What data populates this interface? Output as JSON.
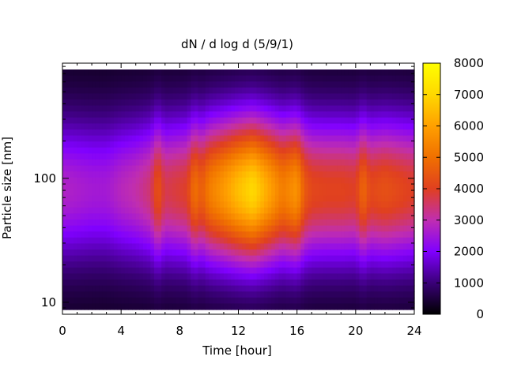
{
  "chart_data": {
    "type": "heatmap",
    "title": "dN / d log d (5/9/1)",
    "xlabel": "Time [hour]",
    "ylabel": "Particle size [nm]",
    "xlim": [
      0,
      24
    ],
    "x_ticks": [
      0,
      4,
      8,
      12,
      16,
      20,
      24
    ],
    "x_tick_labels": [
      "0",
      "4",
      "8",
      "12",
      "16",
      "20",
      "24"
    ],
    "y_scale": "log",
    "ylim": [
      8,
      850
    ],
    "y_ticks": [
      10,
      100
    ],
    "y_tick_labels": [
      "10",
      "100"
    ],
    "colorbar": {
      "range": [
        0,
        8000
      ],
      "ticks": [
        0,
        1000,
        2000,
        3000,
        4000,
        5000,
        6000,
        7000,
        8000
      ],
      "tick_labels": [
        "0",
        "1000",
        "2000",
        "3000",
        "4000",
        "5000",
        "6000",
        "7000",
        "8000"
      ],
      "colormap": [
        "#000000",
        "#3a0078",
        "#8000ff",
        "#c02eb0",
        "#e04020",
        "#f07000",
        "#ffa000",
        "#ffd800",
        "#ffff00"
      ]
    },
    "peak_diameter_nm": 80,
    "time_hours": [
      0,
      1,
      2,
      3,
      4,
      5,
      6,
      6.5,
      7,
      8,
      8.5,
      9,
      9.5,
      10,
      11,
      12,
      13,
      14,
      15,
      16,
      16.5,
      17,
      18,
      19,
      20,
      20.5,
      21,
      22,
      23,
      24
    ],
    "peak_concentration": [
      2500,
      2400,
      2300,
      2300,
      2600,
      2800,
      3200,
      4200,
      3400,
      3600,
      3700,
      4800,
      4300,
      5000,
      5600,
      6300,
      6800,
      5900,
      5000,
      5500,
      4300,
      3900,
      3800,
      3800,
      3700,
      4600,
      3900,
      4100,
      3900,
      3700
    ]
  }
}
